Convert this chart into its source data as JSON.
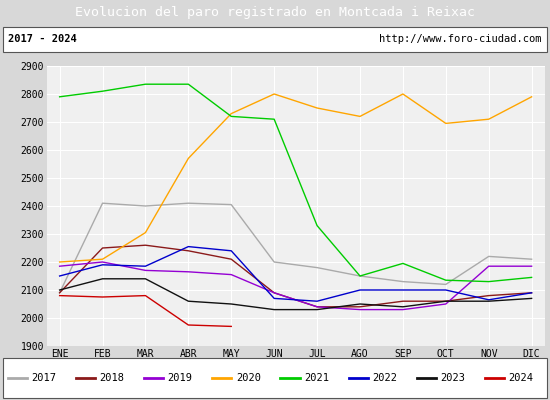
{
  "title": "Evolucion del paro registrado en Montcada i Reixac",
  "subtitle_left": "2017 - 2024",
  "subtitle_right": "http://www.foro-ciudad.com",
  "ylim": [
    1900,
    2900
  ],
  "months": [
    "ENE",
    "FEB",
    "MAR",
    "ABR",
    "MAY",
    "JUN",
    "JUL",
    "AGO",
    "SEP",
    "OCT",
    "NOV",
    "DIC"
  ],
  "series": {
    "2017": {
      "color": "#aaaaaa",
      "data": [
        2090,
        2410,
        2400,
        2410,
        2405,
        2200,
        2180,
        2150,
        2130,
        2120,
        2220,
        2210
      ]
    },
    "2018": {
      "color": "#8b1a1a",
      "data": [
        2090,
        2250,
        2260,
        2240,
        2210,
        2090,
        2040,
        2040,
        2060,
        2060,
        2080,
        2090
      ]
    },
    "2019": {
      "color": "#9400d3",
      "data": [
        2185,
        2200,
        2170,
        2165,
        2155,
        2090,
        2040,
        2030,
        2030,
        2050,
        2185,
        2185
      ]
    },
    "2020": {
      "color": "#ffa500",
      "data": [
        2200,
        2210,
        2305,
        2570,
        2730,
        2800,
        2750,
        2720,
        2800,
        2695,
        2710,
        2790
      ]
    },
    "2021": {
      "color": "#00cc00",
      "data": [
        2790,
        2810,
        2835,
        2835,
        2720,
        2710,
        2330,
        2150,
        2195,
        2135,
        2130,
        2145
      ]
    },
    "2022": {
      "color": "#0000cc",
      "data": [
        2150,
        2190,
        2185,
        2255,
        2240,
        2070,
        2060,
        2100,
        2100,
        2100,
        2065,
        2090
      ]
    },
    "2023": {
      "color": "#111111",
      "data": [
        2100,
        2140,
        2140,
        2060,
        2050,
        2030,
        2030,
        2050,
        2040,
        2060,
        2060,
        2070
      ]
    },
    "2024": {
      "color": "#cc0000",
      "data": [
        2080,
        2075,
        2080,
        1975,
        1970,
        null,
        null,
        null,
        null,
        null,
        null,
        null
      ]
    }
  },
  "title_bg": "#4080c0",
  "title_color": "white",
  "title_fontsize": 9.5,
  "subtitle_fontsize": 7.5,
  "tick_fontsize": 7,
  "legend_fontsize": 7.5,
  "plot_bg": "#f0f0f0",
  "outer_bg": "#d8d8d8",
  "grid_color": "white",
  "border_color": "#555555"
}
